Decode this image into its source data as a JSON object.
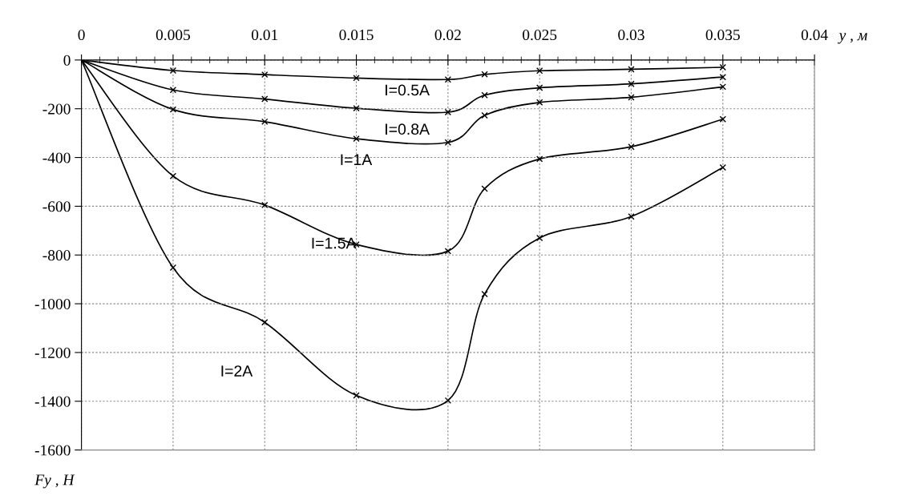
{
  "chart_data": {
    "type": "line",
    "xlabel": "y , м",
    "ylabel": "Fy , Н",
    "x": [
      0,
      0.005,
      0.01,
      0.015,
      0.02,
      0.022,
      0.025,
      0.03,
      0.035
    ],
    "series": [
      {
        "name": "I=0.5A",
        "color": "#000000",
        "values": [
          0,
          -43,
          -60,
          -74,
          -80,
          -59,
          -44,
          -38,
          -30
        ]
      },
      {
        "name": "I=0.8A",
        "color": "#000000",
        "values": [
          0,
          -123,
          -160,
          -198,
          -214,
          -144,
          -114,
          -98,
          -70
        ]
      },
      {
        "name": "I=1A",
        "color": "#000000",
        "values": [
          0,
          -203,
          -253,
          -323,
          -338,
          -227,
          -174,
          -153,
          -110
        ]
      },
      {
        "name": "I=1.5A",
        "color": "#000000",
        "values": [
          0,
          -476,
          -595,
          -757,
          -784,
          -528,
          -406,
          -356,
          -243
        ]
      },
      {
        "name": "I=2A",
        "color": "#000000",
        "values": [
          0,
          -852,
          -1076,
          -1376,
          -1397,
          -960,
          -730,
          -642,
          -441
        ]
      }
    ],
    "xlim": [
      0,
      0.04
    ],
    "xticks": [
      0,
      0.005,
      0.01,
      0.015,
      0.02,
      0.025,
      0.03,
      0.035,
      0.04
    ],
    "ylim": [
      -1600,
      0
    ],
    "yticks": [
      -1600,
      -1400,
      -1200,
      -1000,
      -800,
      -600,
      -400,
      -200,
      0
    ],
    "grid": true,
    "marker": "cross",
    "line_style": "solid",
    "legend": false
  }
}
